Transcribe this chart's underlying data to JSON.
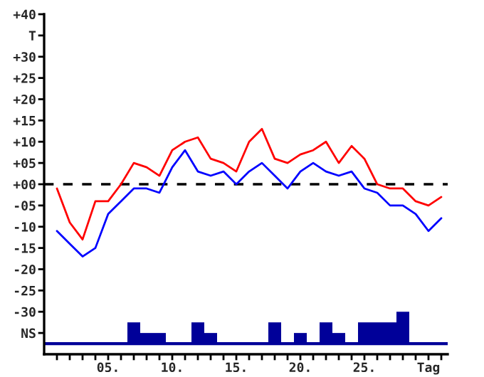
{
  "chart_data": {
    "type": "line",
    "x": [
      1,
      2,
      3,
      4,
      5,
      6,
      7,
      8,
      9,
      10,
      11,
      12,
      13,
      14,
      15,
      16,
      17,
      18,
      19,
      20,
      21,
      22,
      23,
      24,
      25,
      26,
      27,
      28,
      29,
      30,
      31
    ],
    "series": [
      {
        "color": "#ff0000",
        "values": [
          -1,
          -9,
          -13,
          -4,
          -4,
          0,
          5,
          4,
          2,
          8,
          10,
          11,
          6,
          5,
          3,
          10,
          13,
          6,
          5,
          7,
          8,
          10,
          5,
          9,
          6,
          0,
          -1,
          -1,
          -4,
          -5,
          -3
        ]
      },
      {
        "color": "#0000ff",
        "values": [
          -11,
          -14,
          -17,
          -15,
          -7,
          -4,
          -1,
          -1,
          -2,
          4,
          8,
          3,
          2,
          3,
          0,
          3,
          5,
          2,
          -1,
          3,
          5,
          3,
          2,
          3,
          -1,
          -2,
          -5,
          -5,
          -7,
          -11,
          -8
        ]
      },
      {
        "type": "bar",
        "color": "#000099",
        "base": [
          null,
          null,
          null,
          null,
          null,
          null,
          -37.5,
          -37.5,
          -37.5,
          null,
          null,
          -37.5,
          -37.5,
          null,
          null,
          null,
          null,
          -37.5,
          null,
          -37.5,
          null,
          -37.5,
          -37.5,
          null,
          -37.5,
          -37.5,
          -37.5,
          -37.5,
          null,
          null,
          null
        ],
        "values": [
          null,
          null,
          null,
          null,
          null,
          null,
          5,
          2.5,
          2.5,
          null,
          null,
          5,
          2.5,
          null,
          null,
          null,
          null,
          5,
          null,
          2.5,
          null,
          5,
          2.5,
          null,
          5,
          5,
          5,
          7.5,
          null,
          null,
          null
        ]
      }
    ],
    "xlim": [
      0,
      31.5
    ],
    "xticks": [
      {
        "value": 1,
        "label": null
      },
      {
        "value": 2,
        "label": null
      },
      {
        "value": 3,
        "label": null
      },
      {
        "value": 4,
        "label": null
      },
      {
        "value": 5,
        "label": "05."
      },
      {
        "value": 6,
        "label": null
      },
      {
        "value": 7,
        "label": null
      },
      {
        "value": 8,
        "label": null
      },
      {
        "value": 9,
        "label": null
      },
      {
        "value": 10,
        "label": "10."
      },
      {
        "value": 11,
        "label": null
      },
      {
        "value": 12,
        "label": null
      },
      {
        "value": 13,
        "label": null
      },
      {
        "value": 14,
        "label": null
      },
      {
        "value": 15,
        "label": "15."
      },
      {
        "value": 16,
        "label": null
      },
      {
        "value": 17,
        "label": null
      },
      {
        "value": 18,
        "label": null
      },
      {
        "value": 19,
        "label": null
      },
      {
        "value": 20,
        "label": "20."
      },
      {
        "value": 21,
        "label": null
      },
      {
        "value": 22,
        "label": null
      },
      {
        "value": 23,
        "label": null
      },
      {
        "value": 24,
        "label": null
      },
      {
        "value": 25,
        "label": "25."
      },
      {
        "value": 26,
        "label": null
      },
      {
        "value": 27,
        "label": null
      },
      {
        "value": 28,
        "label": null
      },
      {
        "value": 29,
        "label": null
      },
      {
        "value": 30,
        "label": "Tag"
      },
      {
        "value": 31,
        "label": null
      }
    ],
    "ylim": [
      -40,
      40
    ],
    "yticks": [
      {
        "value": 40,
        "label": "+40"
      },
      {
        "value": 35,
        "label": "T"
      },
      {
        "value": 30,
        "label": "+30"
      },
      {
        "value": 25,
        "label": "+25"
      },
      {
        "value": 20,
        "label": "+20"
      },
      {
        "value": 15,
        "label": "+15"
      },
      {
        "value": 10,
        "label": "+10"
      },
      {
        "value": 5,
        "label": "+05"
      },
      {
        "value": 0,
        "label": "+00"
      },
      {
        "value": -5,
        "label": "-05"
      },
      {
        "value": -10,
        "label": "-10"
      },
      {
        "value": -15,
        "label": "-15"
      },
      {
        "value": -20,
        "label": "-20"
      },
      {
        "value": -25,
        "label": "-25"
      },
      {
        "value": -30,
        "label": "-30"
      },
      {
        "value": -35,
        "label": "NS"
      }
    ],
    "ref_lines": [
      {
        "axis": "y",
        "value": 0,
        "color": "#000000",
        "line_style": "dashed"
      },
      {
        "axis": "y",
        "value": -37.5,
        "color": "#000099",
        "line_style": "solid"
      }
    ],
    "grid": false,
    "legend": false
  }
}
